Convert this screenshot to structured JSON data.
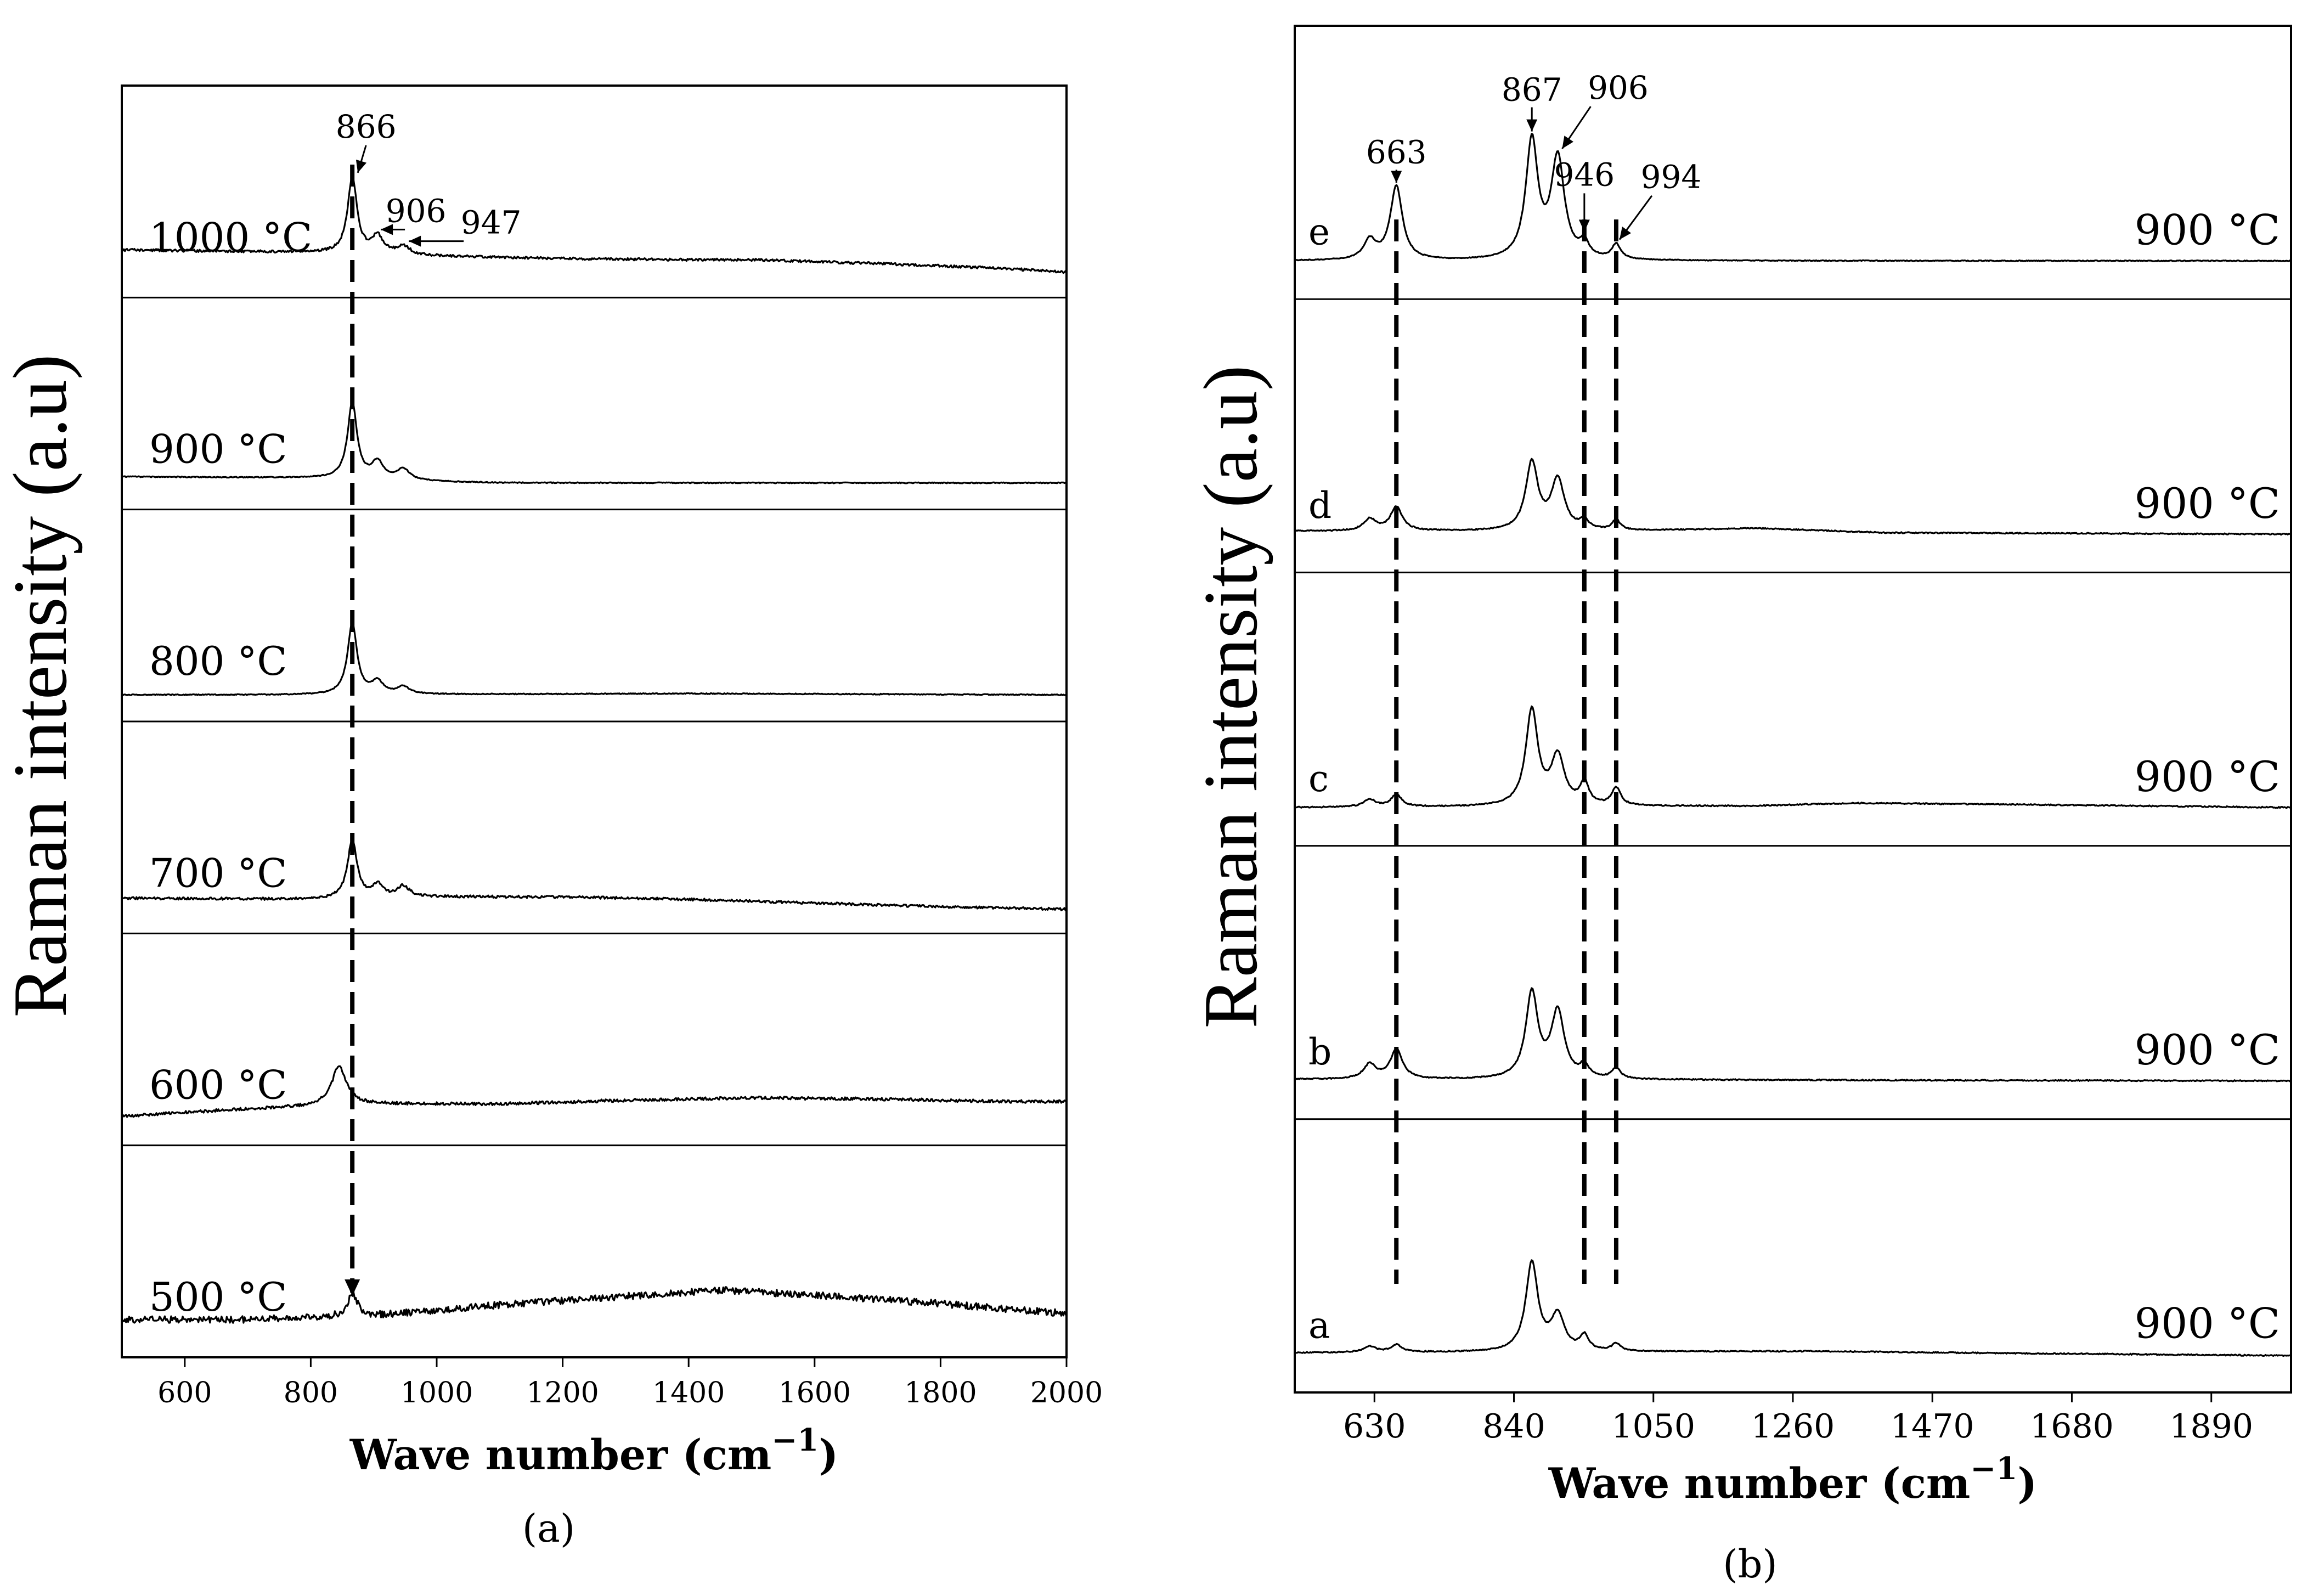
{
  "figure": {
    "panels": [
      "(a)",
      "(b)"
    ]
  },
  "chart_data": [
    {
      "type": "line",
      "panel_label": "(a)",
      "title": "",
      "xlabel": "Wave number (cm⁻¹)",
      "xlabel_main": "Wave number (cm",
      "xlabel_sup": "−1",
      "xlabel_close": ")",
      "ylabel": "Raman intensity (a.u)",
      "xlim": [
        500,
        2000
      ],
      "xticks": [
        600,
        800,
        1000,
        1200,
        1400,
        1600,
        1800,
        2000
      ],
      "stacked": true,
      "series": [
        {
          "name": "1000 °C",
          "baseline": [
            [
              500,
              0.18
            ],
            [
              800,
              0.16
            ],
            [
              1000,
              0.13
            ],
            [
              1200,
              0.11
            ],
            [
              1400,
              0.1
            ],
            [
              1500,
              0.1
            ],
            [
              1700,
              0.07
            ],
            [
              1900,
              0.03
            ],
            [
              2000,
              0.0
            ]
          ],
          "peaks": [
            {
              "x": 866,
              "h": 0.62,
              "w": 9
            },
            {
              "x": 906,
              "h": 0.14,
              "w": 11
            },
            {
              "x": 947,
              "h": 0.07,
              "w": 12
            }
          ],
          "noise": 0.01,
          "seed": 11
        },
        {
          "name": "900 °C",
          "baseline": [
            [
              500,
              0.06
            ],
            [
              800,
              0.05
            ],
            [
              1000,
              0.02
            ],
            [
              1100,
              0.01
            ],
            [
              2000,
              0.01
            ]
          ],
          "peaks": [
            {
              "x": 866,
              "h": 0.62,
              "w": 9
            },
            {
              "x": 906,
              "h": 0.14,
              "w": 11
            },
            {
              "x": 947,
              "h": 0.09,
              "w": 12
            }
          ],
          "noise": 0.004,
          "seed": 12
        },
        {
          "name": "800 °C",
          "baseline": [
            [
              500,
              0.01
            ],
            [
              800,
              0.01
            ],
            [
              1400,
              0.02
            ],
            [
              2000,
              0.01
            ]
          ],
          "peaks": [
            {
              "x": 866,
              "h": 0.58,
              "w": 9
            },
            {
              "x": 906,
              "h": 0.1,
              "w": 11
            },
            {
              "x": 947,
              "h": 0.06,
              "w": 12
            }
          ],
          "noise": 0.004,
          "seed": 13
        },
        {
          "name": "700 °C",
          "baseline": [
            [
              500,
              0.08
            ],
            [
              800,
              0.07
            ],
            [
              1000,
              0.09
            ],
            [
              1200,
              0.09
            ],
            [
              1400,
              0.07
            ],
            [
              1600,
              0.04
            ],
            [
              1800,
              0.01
            ],
            [
              2000,
              -0.01
            ]
          ],
          "peaks": [
            {
              "x": 866,
              "h": 0.48,
              "w": 9
            },
            {
              "x": 906,
              "h": 0.1,
              "w": 11
            },
            {
              "x": 947,
              "h": 0.09,
              "w": 12
            }
          ],
          "noise": 0.01,
          "seed": 14
        },
        {
          "name": "600 °C",
          "baseline": [
            [
              500,
              0.03
            ],
            [
              700,
              0.09
            ],
            [
              900,
              0.13
            ],
            [
              1100,
              0.13
            ],
            [
              1300,
              0.16
            ],
            [
              1500,
              0.18
            ],
            [
              1700,
              0.17
            ],
            [
              1900,
              0.15
            ],
            [
              2000,
              0.15
            ]
          ],
          "peaks": [
            {
              "x": 845,
              "h": 0.32,
              "w": 14
            }
          ],
          "noise": 0.012,
          "seed": 15
        },
        {
          "name": "500 °C",
          "baseline": [
            [
              500,
              0.1
            ],
            [
              700,
              0.1
            ],
            [
              900,
              0.13
            ],
            [
              1100,
              0.22
            ],
            [
              1300,
              0.29
            ],
            [
              1450,
              0.34
            ],
            [
              1600,
              0.3
            ],
            [
              1800,
              0.23
            ],
            [
              2000,
              0.15
            ]
          ],
          "peaks": [
            {
              "x": 866,
              "h": 0.18,
              "w": 10
            }
          ],
          "noise": 0.028,
          "seed": 16
        }
      ],
      "annotations": [
        {
          "text": "866",
          "target_x": 866
        },
        {
          "text": "906",
          "target_x": 906
        },
        {
          "text": "947",
          "target_x": 947
        }
      ],
      "reference_lines": [
        866
      ]
    },
    {
      "type": "line",
      "panel_label": "(b)",
      "title": "",
      "xlabel": "Wave number (cm⁻¹)",
      "xlabel_main": "Wave number (cm",
      "xlabel_sup": "−1",
      "xlabel_close": ")",
      "ylabel": "Raman intensity (a.u)",
      "xlim": [
        510,
        2010
      ],
      "xticks": [
        630,
        840,
        1050,
        1260,
        1470,
        1680,
        1890
      ],
      "stacked": true,
      "series": [
        {
          "name": "e",
          "condition": "900 °C",
          "baseline": [
            [
              510,
              0.0
            ],
            [
              2010,
              0.0
            ]
          ],
          "peaks": [
            {
              "x": 623,
              "h": 0.13,
              "w": 11
            },
            {
              "x": 663,
              "h": 0.5,
              "w": 11
            },
            {
              "x": 867,
              "h": 0.8,
              "w": 11
            },
            {
              "x": 906,
              "h": 0.68,
              "w": 12
            },
            {
              "x": 946,
              "h": 0.1,
              "w": 8
            },
            {
              "x": 994,
              "h": 0.1,
              "w": 8
            }
          ],
          "noise": 0.003,
          "seed": 21
        },
        {
          "name": "d",
          "condition": "900 °C",
          "baseline": [
            [
              510,
              0.02
            ],
            [
              1000,
              0.02
            ],
            [
              1200,
              0.04
            ],
            [
              1400,
              0.01
            ],
            [
              2010,
              0.0
            ]
          ],
          "peaks": [
            {
              "x": 623,
              "h": 0.08,
              "w": 11
            },
            {
              "x": 663,
              "h": 0.16,
              "w": 11
            },
            {
              "x": 867,
              "h": 0.46,
              "w": 11
            },
            {
              "x": 906,
              "h": 0.34,
              "w": 12
            },
            {
              "x": 946,
              "h": 0.06,
              "w": 8
            },
            {
              "x": 994,
              "h": 0.07,
              "w": 8
            }
          ],
          "noise": 0.004,
          "seed": 22
        },
        {
          "name": "c",
          "condition": "900 °C",
          "baseline": [
            [
              510,
              0.0
            ],
            [
              1200,
              0.01
            ],
            [
              1350,
              0.03
            ],
            [
              1600,
              0.02
            ],
            [
              2010,
              0.0
            ]
          ],
          "peaks": [
            {
              "x": 623,
              "h": 0.05,
              "w": 11
            },
            {
              "x": 663,
              "h": 0.08,
              "w": 10
            },
            {
              "x": 867,
              "h": 0.65,
              "w": 11
            },
            {
              "x": 906,
              "h": 0.33,
              "w": 12
            },
            {
              "x": 946,
              "h": 0.15,
              "w": 8
            },
            {
              "x": 994,
              "h": 0.12,
              "w": 8
            }
          ],
          "noise": 0.004,
          "seed": 23
        },
        {
          "name": "b",
          "condition": "900 °C",
          "baseline": [
            [
              510,
              0.01
            ],
            [
              2010,
              0.0
            ]
          ],
          "peaks": [
            {
              "x": 623,
              "h": 0.1,
              "w": 11
            },
            {
              "x": 663,
              "h": 0.2,
              "w": 11
            },
            {
              "x": 867,
              "h": 0.58,
              "w": 11
            },
            {
              "x": 906,
              "h": 0.45,
              "w": 12
            },
            {
              "x": 946,
              "h": 0.08,
              "w": 8
            },
            {
              "x": 994,
              "h": 0.07,
              "w": 8
            }
          ],
          "noise": 0.004,
          "seed": 24
        },
        {
          "name": "a",
          "condition": "900 °C",
          "baseline": [
            [
              510,
              0.01
            ],
            [
              1300,
              0.02
            ],
            [
              1500,
              0.01
            ],
            [
              2010,
              -0.01
            ]
          ],
          "peaks": [
            {
              "x": 623,
              "h": 0.04,
              "w": 11
            },
            {
              "x": 663,
              "h": 0.05,
              "w": 10
            },
            {
              "x": 867,
              "h": 0.6,
              "w": 11
            },
            {
              "x": 906,
              "h": 0.24,
              "w": 12
            },
            {
              "x": 946,
              "h": 0.1,
              "w": 8
            },
            {
              "x": 994,
              "h": 0.05,
              "w": 8
            }
          ],
          "noise": 0.004,
          "seed": 25
        }
      ],
      "annotations": [
        {
          "text": "663",
          "target_x": 663
        },
        {
          "text": "867",
          "target_x": 867
        },
        {
          "text": "906",
          "target_x": 906
        },
        {
          "text": "946",
          "target_x": 946
        },
        {
          "text": "994",
          "target_x": 994
        }
      ],
      "reference_lines": [
        663,
        946,
        994
      ]
    }
  ]
}
